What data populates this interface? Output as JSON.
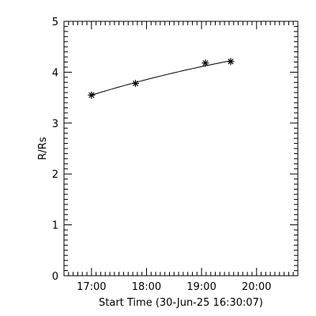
{
  "chart_data": {
    "type": "scatter",
    "title": "",
    "xlabel": "Start Time (30-Jun-25 16:30:07)",
    "ylabel": "R/Rs",
    "x_units": "hours since 30-Jun-25 00:00 UT",
    "xlim": [
      16.5,
      20.75
    ],
    "ylim": [
      0,
      5
    ],
    "x_tick_values": [
      17,
      18,
      19,
      20
    ],
    "x_tick_labels": [
      "17:00",
      "18:00",
      "19:00",
      "20:00"
    ],
    "y_tick_values": [
      0,
      1,
      2,
      3,
      4,
      5
    ],
    "y_tick_labels": [
      "0",
      "1",
      "2",
      "3",
      "4",
      "5"
    ],
    "series": [
      {
        "marker": "asterisk",
        "x": [
          17.0,
          17.8,
          19.07,
          19.53
        ],
        "y": [
          3.55,
          3.78,
          4.18,
          4.21
        ]
      }
    ],
    "fit": {
      "type": "quadratic",
      "x_range": [
        17.0,
        19.53
      ],
      "coefficients_about_x17": [
        3.55,
        0.33,
        -0.025
      ]
    },
    "color": "#000000",
    "grid": false,
    "legend": "none"
  }
}
